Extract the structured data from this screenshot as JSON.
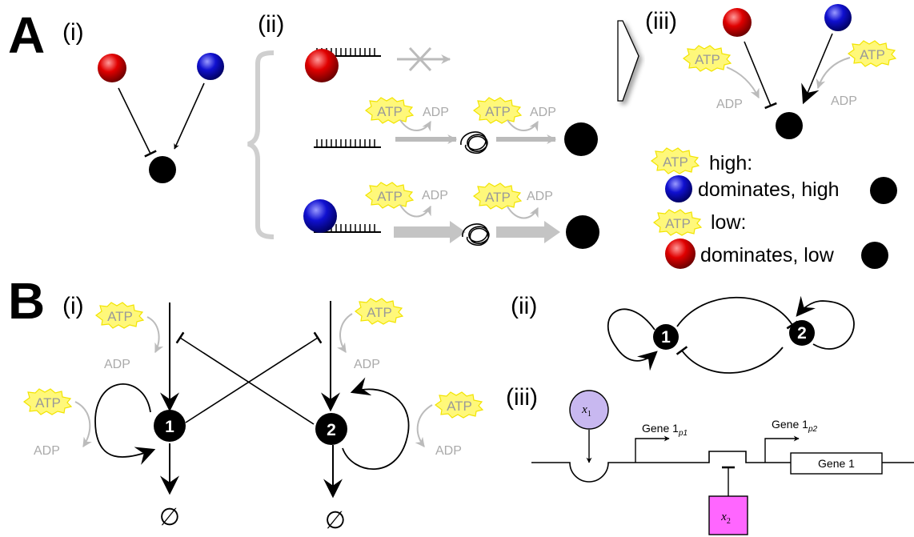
{
  "panels": {
    "A": "A",
    "B": "B"
  },
  "sub": {
    "i": "(i)",
    "ii": "(ii)",
    "iii": "(iii)"
  },
  "badges": {
    "atp": "ATP",
    "adp": "ADP"
  },
  "legend": {
    "line1": "high:",
    "line2": "dominates, high",
    "line3": "low:",
    "line4": "dominates, low"
  },
  "nodes": {
    "one": "1",
    "two": "2"
  },
  "degradation_symbol": "∅",
  "genes": {
    "promoter1": "Gene 1",
    "promoter1_sub": "p1",
    "promoter2": "Gene 1",
    "promoter2_sub": "p2",
    "box": "Gene 1"
  },
  "species": {
    "x1": "x",
    "x1_sub": "1",
    "x2": "x",
    "x2_sub": "2"
  },
  "colors": {
    "red": "#e00000",
    "blue": "#1010d0",
    "atp_fill": "#fff87a",
    "atp_stroke": "#f2e400",
    "gray": "#bbbbbb",
    "violet": "#c8b8f0",
    "magenta": "#ff66ff"
  }
}
